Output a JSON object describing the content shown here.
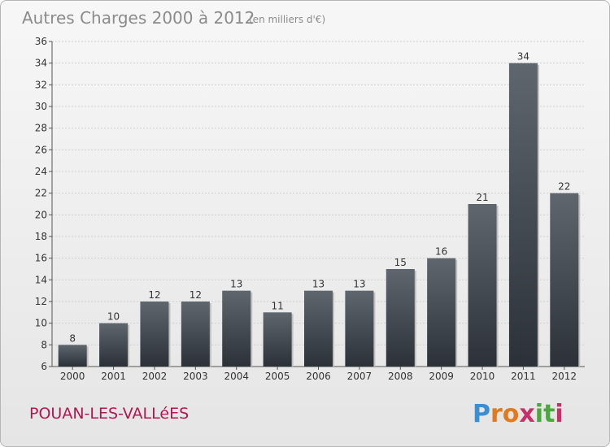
{
  "chart_data": {
    "type": "bar",
    "title": "Autres Charges 2000 à 2012",
    "subtitle": "(en milliers d'€)",
    "categories": [
      "2000",
      "2001",
      "2002",
      "2003",
      "2004",
      "2005",
      "2006",
      "2007",
      "2008",
      "2009",
      "2010",
      "2011",
      "2012"
    ],
    "values": [
      8,
      10,
      12,
      12,
      13,
      11,
      13,
      13,
      15,
      16,
      21,
      34,
      22
    ],
    "ylim": [
      6,
      36
    ],
    "yticks": [
      "6",
      "8",
      "10",
      "12",
      "14",
      "16",
      "18",
      "20",
      "22",
      "24",
      "26",
      "28",
      "30",
      "32",
      "34",
      "36"
    ],
    "grid": true,
    "bar_color": "#4a5058"
  },
  "location": "POUAN-LES-VALLéES",
  "logo": {
    "text": "Proxiti",
    "letters": [
      "P",
      "r",
      "o",
      "x",
      "i",
      "t",
      "i"
    ],
    "colors": [
      "#3a8fd4",
      "#e07a1e",
      "#e07a1e",
      "#c8306a",
      "#4aa83c",
      "#4aa83c",
      "#c8306a"
    ]
  }
}
